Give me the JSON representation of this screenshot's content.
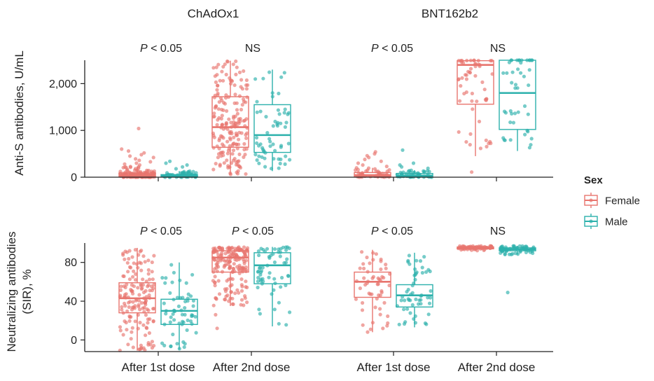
{
  "chart_data": {
    "type": "box",
    "group_titles": [
      "ChAdOx1",
      "BNT162b2"
    ],
    "categories": [
      "After 1st dose",
      "After 2nd dose",
      "After 1st dose",
      "After 2nd dose"
    ],
    "legend": {
      "title": "Sex",
      "placement": "right",
      "entries": [
        {
          "name": "Female",
          "color": "#E8756E"
        },
        {
          "name": "Male",
          "color": "#2CB1AC"
        }
      ]
    },
    "panels": [
      {
        "ylabel": [
          "Anti-S antibodies, U/mL"
        ],
        "ylim": [
          0,
          2500
        ],
        "yticks": [
          0,
          1000,
          2000
        ],
        "ytick_labels": [
          "0",
          "1,000",
          "2,000"
        ],
        "significance": [
          {
            "p": "P",
            "text": " < 0.05"
          },
          {
            "p": "",
            "text": "NS"
          },
          {
            "p": "P",
            "text": " < 0.05"
          },
          {
            "p": "",
            "text": "NS"
          }
        ],
        "boxes": [
          {
            "category": 0,
            "sex": "Female",
            "whisker_low": 0,
            "q1": 10,
            "median": 40,
            "q3": 90,
            "whisker_high": 230,
            "points": 140,
            "outliers": [
              1040,
              600,
              560,
              520,
              480,
              450,
              420,
              390,
              360,
              330,
              300,
              280,
              260
            ]
          },
          {
            "category": 0,
            "sex": "Male",
            "whisker_low": 0,
            "q1": 5,
            "median": 25,
            "q3": 55,
            "whisker_high": 130,
            "points": 60,
            "outliers": [
              340,
              300,
              260,
              220,
              180
            ]
          },
          {
            "category": 1,
            "sex": "Female",
            "whisker_low": 60,
            "q1": 640,
            "median": 1070,
            "q3": 1720,
            "whisker_high": 2490,
            "points": 190,
            "outliers": []
          },
          {
            "category": 1,
            "sex": "Male",
            "whisker_low": 130,
            "q1": 530,
            "median": 900,
            "q3": 1550,
            "whisker_high": 2300,
            "points": 60,
            "outliers": []
          },
          {
            "category": 2,
            "sex": "Female",
            "whisker_low": 0,
            "q1": 15,
            "median": 45,
            "q3": 100,
            "whisker_high": 200,
            "points": 45,
            "outliers": [
              540,
              500,
              460,
              420,
              380,
              340,
              300,
              260,
              230
            ]
          },
          {
            "category": 2,
            "sex": "Male",
            "whisker_low": 0,
            "q1": 10,
            "median": 35,
            "q3": 80,
            "whisker_high": 150,
            "points": 45,
            "outliers": [
              580,
              300,
              260,
              220,
              190
            ]
          },
          {
            "category": 3,
            "sex": "Female",
            "whisker_low": 450,
            "q1": 1560,
            "median": 2400,
            "q3": 2490,
            "whisker_high": 2500,
            "points": 55,
            "outliers": [
              110
            ]
          },
          {
            "category": 3,
            "sex": "Male",
            "whisker_low": 560,
            "q1": 1020,
            "median": 1800,
            "q3": 2500,
            "whisker_high": 2500,
            "points": 45,
            "outliers": []
          }
        ]
      },
      {
        "ylabel": [
          "Neutralizing antibodies",
          "(SIR), %"
        ],
        "ylim": [
          -12,
          100
        ],
        "yticks": [
          0,
          40,
          80
        ],
        "ytick_labels": [
          "0",
          "40",
          "80"
        ],
        "significance": [
          {
            "p": "P",
            "text": " < 0.05"
          },
          {
            "p": "P",
            "text": " < 0.05"
          },
          {
            "p": "P",
            "text": " < 0.05"
          },
          {
            "p": "",
            "text": "NS"
          }
        ],
        "boxes": [
          {
            "category": 0,
            "sex": "Female",
            "whisker_low": -11,
            "q1": 28,
            "median": 43,
            "q3": 59,
            "whisker_high": 95,
            "points": 160,
            "outliers": []
          },
          {
            "category": 0,
            "sex": "Male",
            "whisker_low": -10,
            "q1": 16,
            "median": 30,
            "q3": 42,
            "whisker_high": 80,
            "points": 60,
            "outliers": []
          },
          {
            "category": 1,
            "sex": "Female",
            "whisker_low": 35,
            "q1": 70,
            "median": 85,
            "q3": 92,
            "whisker_high": 96,
            "points": 180,
            "outliers": [
              12,
              26
            ]
          },
          {
            "category": 1,
            "sex": "Male",
            "whisker_low": 14,
            "q1": 58,
            "median": 77,
            "q3": 90,
            "whisker_high": 96,
            "points": 60,
            "outliers": []
          },
          {
            "category": 2,
            "sex": "Female",
            "whisker_low": 8,
            "q1": 44,
            "median": 60,
            "q3": 70,
            "whisker_high": 93,
            "points": 55,
            "outliers": []
          },
          {
            "category": 2,
            "sex": "Male",
            "whisker_low": 13,
            "q1": 34,
            "median": 46,
            "q3": 57,
            "whisker_high": 90,
            "points": 55,
            "outliers": []
          },
          {
            "category": 3,
            "sex": "Female",
            "whisker_low": 92,
            "q1": 94,
            "median": 95,
            "q3": 96,
            "whisker_high": 97,
            "points": 60,
            "outliers": []
          },
          {
            "category": 3,
            "sex": "Male",
            "whisker_low": 88,
            "q1": 92,
            "median": 93.5,
            "q3": 95,
            "whisker_high": 97,
            "points": 55,
            "outliers": [
              49
            ]
          }
        ]
      }
    ]
  }
}
